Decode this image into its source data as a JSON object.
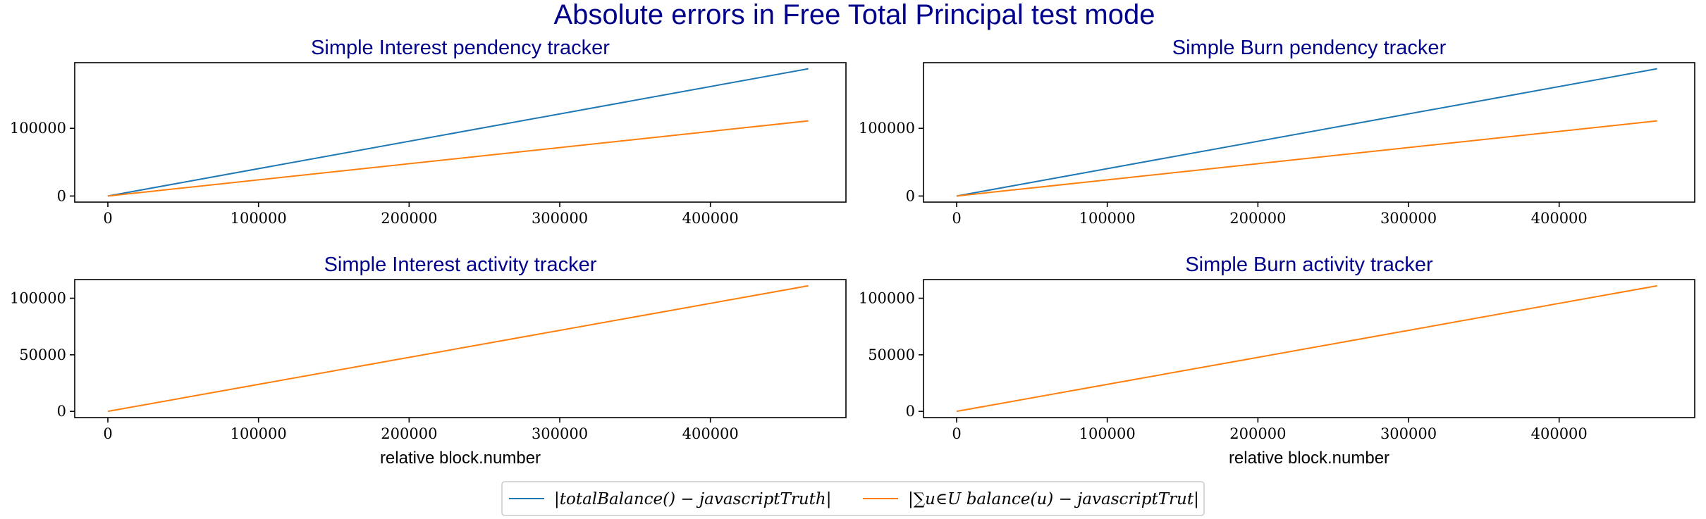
{
  "figure_title": "Absolute errors in Free Total Principal test mode",
  "legend": {
    "placement": "bottom-center",
    "entries": [
      {
        "label": "|totalBalance() − javascriptTruth|",
        "color": "#1f77b4"
      },
      {
        "label": "|∑u∈U balance(u) − javascriptTrut|",
        "color": "#ff7f0e"
      }
    ]
  },
  "chart_data": [
    {
      "type": "line",
      "title": "Simple Interest pendency tracker",
      "xlabel": "",
      "ylabel": "",
      "xlim": [
        -22000,
        490000
      ],
      "ylim": [
        -9000,
        197000
      ],
      "xticks": [
        0,
        100000,
        200000,
        300000,
        400000
      ],
      "yticks": [
        0,
        100000
      ],
      "grid": false,
      "series": [
        {
          "color": "#1f77b4",
          "x": [
            0,
            465000
          ],
          "y": [
            0,
            188000
          ]
        },
        {
          "color": "#ff7f0e",
          "x": [
            0,
            465000
          ],
          "y": [
            0,
            111000
          ]
        }
      ]
    },
    {
      "type": "line",
      "title": "Simple Burn pendency tracker",
      "xlabel": "",
      "ylabel": "",
      "xlim": [
        -22000,
        490000
      ],
      "ylim": [
        -9000,
        197000
      ],
      "xticks": [
        0,
        100000,
        200000,
        300000,
        400000
      ],
      "yticks": [
        0,
        100000
      ],
      "grid": false,
      "series": [
        {
          "color": "#1f77b4",
          "x": [
            0,
            465000
          ],
          "y": [
            0,
            188000
          ]
        },
        {
          "color": "#ff7f0e",
          "x": [
            0,
            465000
          ],
          "y": [
            0,
            111000
          ]
        }
      ]
    },
    {
      "type": "line",
      "title": "Simple Interest activity tracker",
      "xlabel": "relative block.number",
      "ylabel": "",
      "xlim": [
        -22000,
        490000
      ],
      "ylim": [
        -5500,
        116500
      ],
      "xticks": [
        0,
        100000,
        200000,
        300000,
        400000
      ],
      "yticks": [
        0,
        50000,
        100000
      ],
      "grid": false,
      "series": [
        {
          "color": "#ff7f0e",
          "x": [
            0,
            465000
          ],
          "y": [
            0,
            111000
          ]
        }
      ]
    },
    {
      "type": "line",
      "title": "Simple Burn activity tracker",
      "xlabel": "relative block.number",
      "ylabel": "",
      "xlim": [
        -22000,
        490000
      ],
      "ylim": [
        -5500,
        116500
      ],
      "xticks": [
        0,
        100000,
        200000,
        300000,
        400000
      ],
      "yticks": [
        0,
        50000,
        100000
      ],
      "grid": false,
      "series": [
        {
          "color": "#ff7f0e",
          "x": [
            0,
            465000
          ],
          "y": [
            0,
            111000
          ]
        }
      ]
    }
  ]
}
